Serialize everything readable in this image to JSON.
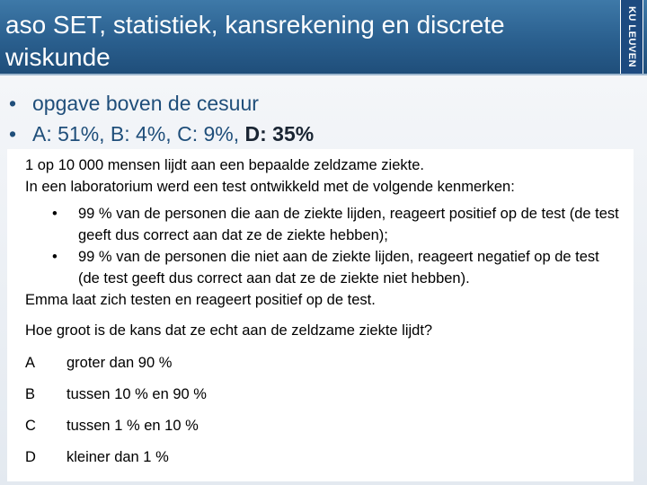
{
  "header": {
    "title": "aso SET, statistiek, kansrekening en discrete wiskunde",
    "logo": "KU LEUVEN"
  },
  "bullets": [
    {
      "text": "opgave boven de cesuur",
      "bold": ""
    },
    {
      "text": "A: 51%, B: 4%, C: 9%, ",
      "bold": "D: 35%"
    }
  ],
  "exercise": {
    "intro1": "1 op 10 000 mensen lijdt aan een bepaalde zeldzame ziekte.",
    "intro2": "In een laboratorium werd een test ontwikkeld met de volgende kenmerken:",
    "properties": [
      "99 % van de personen die aan de ziekte lijden, reageert positief op de test (de test geeft dus correct aan dat ze de ziekte hebben);",
      "99 % van de personen die niet aan de ziekte lijden, reageert negatief op de test (de test geeft dus correct aan dat ze de ziekte niet hebben)."
    ],
    "statement": "Emma laat zich testen en reageert positief op de test.",
    "question": "Hoe groot is de kans dat ze echt aan de zeldzame ziekte lijdt?",
    "options": [
      {
        "letter": "A",
        "text": "groter dan 90 %"
      },
      {
        "letter": "B",
        "text": "tussen 10 % en 90 %"
      },
      {
        "letter": "C",
        "text": "tussen 1 % en 10 %"
      },
      {
        "letter": "D",
        "text": "kleiner dan 1 %"
      }
    ]
  }
}
